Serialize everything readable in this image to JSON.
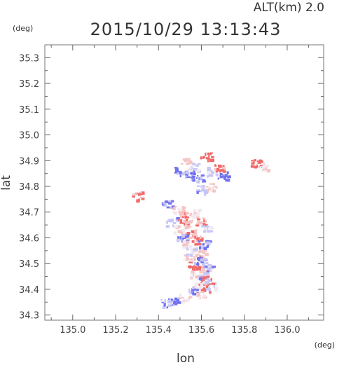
{
  "chart_data": {
    "type": "heatmap",
    "title": "2015/10/29 13:13:43",
    "altitude_label": "ALT(km) 2.0",
    "xlabel": "lon",
    "ylabel": "lat",
    "xunit": "(deg)",
    "yunit": "(deg)",
    "xlim": [
      134.87,
      136.17
    ],
    "ylim": [
      34.28,
      35.35
    ],
    "x_ticks": [
      {
        "value": 135.0,
        "label": "135.0"
      },
      {
        "value": 135.2,
        "label": "135.2"
      },
      {
        "value": 135.4,
        "label": "135.4"
      },
      {
        "value": 135.6,
        "label": "135.6"
      },
      {
        "value": 135.8,
        "label": "135.8"
      },
      {
        "value": 136.0,
        "label": "136.0"
      }
    ],
    "y_ticks": [
      {
        "value": 34.3,
        "label": "34.3"
      },
      {
        "value": 34.4,
        "label": "34.4"
      },
      {
        "value": 34.5,
        "label": "34.5"
      },
      {
        "value": 34.6,
        "label": "34.6"
      },
      {
        "value": 34.7,
        "label": "34.7"
      },
      {
        "value": 34.8,
        "label": "34.8"
      },
      {
        "value": 34.9,
        "label": "34.9"
      },
      {
        "value": 35.0,
        "label": "35.0"
      },
      {
        "value": 35.1,
        "label": "35.1"
      },
      {
        "value": 35.2,
        "label": "35.2"
      },
      {
        "value": 35.3,
        "label": "35.3"
      }
    ],
    "colors": {
      "strong_positive": "#f06a6a",
      "weak_positive": "#f7c4c4",
      "neutral": "#f1e9f1",
      "weak_negative": "#c8c8f6",
      "strong_negative": "#7272ee"
    },
    "regions": [
      {
        "lon": 135.53,
        "lat": 34.905,
        "value": 0.4
      },
      {
        "lon": 135.62,
        "lat": 34.92,
        "value": 1.0
      },
      {
        "lon": 135.56,
        "lat": 34.88,
        "value": -0.3
      },
      {
        "lon": 135.5,
        "lat": 34.86,
        "value": -0.8
      },
      {
        "lon": 135.54,
        "lat": 34.845,
        "value": -0.6
      },
      {
        "lon": 135.58,
        "lat": 34.835,
        "value": -0.7
      },
      {
        "lon": 135.65,
        "lat": 34.86,
        "value": -0.4
      },
      {
        "lon": 135.68,
        "lat": 34.875,
        "value": 0.8
      },
      {
        "lon": 135.7,
        "lat": 34.845,
        "value": -0.9
      },
      {
        "lon": 135.64,
        "lat": 34.8,
        "value": 0.3
      },
      {
        "lon": 135.6,
        "lat": 34.79,
        "value": -0.5
      },
      {
        "lon": 135.85,
        "lat": 34.89,
        "value": 0.9
      },
      {
        "lon": 135.88,
        "lat": 34.88,
        "value": 0.2
      },
      {
        "lon": 135.3,
        "lat": 34.765,
        "value": 0.8
      },
      {
        "lon": 135.44,
        "lat": 34.73,
        "value": -0.7
      },
      {
        "lon": 135.49,
        "lat": 34.71,
        "value": 0.3
      },
      {
        "lon": 135.52,
        "lat": 34.7,
        "value": 0.5
      },
      {
        "lon": 135.56,
        "lat": 34.7,
        "value": 0.2
      },
      {
        "lon": 135.46,
        "lat": 34.665,
        "value": -0.5
      },
      {
        "lon": 135.51,
        "lat": 34.67,
        "value": 0.9
      },
      {
        "lon": 135.54,
        "lat": 34.655,
        "value": 0.4
      },
      {
        "lon": 135.59,
        "lat": 34.665,
        "value": 0.7
      },
      {
        "lon": 135.62,
        "lat": 34.64,
        "value": -0.3
      },
      {
        "lon": 135.49,
        "lat": 34.635,
        "value": 0.3
      },
      {
        "lon": 135.55,
        "lat": 34.62,
        "value": 0.6
      },
      {
        "lon": 135.51,
        "lat": 34.6,
        "value": -0.6
      },
      {
        "lon": 135.58,
        "lat": 34.595,
        "value": 0.8
      },
      {
        "lon": 135.61,
        "lat": 34.58,
        "value": -0.8
      },
      {
        "lon": 135.53,
        "lat": 34.575,
        "value": 0.2
      },
      {
        "lon": 135.55,
        "lat": 34.55,
        "value": -0.4
      },
      {
        "lon": 135.59,
        "lat": 34.54,
        "value": 0.5
      },
      {
        "lon": 135.54,
        "lat": 34.52,
        "value": 0.3
      },
      {
        "lon": 135.59,
        "lat": 34.51,
        "value": -0.7
      },
      {
        "lon": 135.56,
        "lat": 34.495,
        "value": 0.9
      },
      {
        "lon": 135.61,
        "lat": 34.48,
        "value": 0.4
      },
      {
        "lon": 135.63,
        "lat": 34.49,
        "value": -0.5
      },
      {
        "lon": 135.57,
        "lat": 34.46,
        "value": 0.3
      },
      {
        "lon": 135.6,
        "lat": 34.45,
        "value": -0.6
      },
      {
        "lon": 135.62,
        "lat": 34.44,
        "value": 1.0
      },
      {
        "lon": 135.58,
        "lat": 34.415,
        "value": 0.2
      },
      {
        "lon": 135.61,
        "lat": 34.41,
        "value": 0.8
      },
      {
        "lon": 135.64,
        "lat": 34.42,
        "value": -0.3
      },
      {
        "lon": 135.56,
        "lat": 34.395,
        "value": -0.7
      },
      {
        "lon": 135.59,
        "lat": 34.38,
        "value": 0.4
      },
      {
        "lon": 135.52,
        "lat": 34.37,
        "value": 0.1
      },
      {
        "lon": 135.47,
        "lat": 34.355,
        "value": -0.8
      },
      {
        "lon": 135.43,
        "lat": 34.348,
        "value": -0.6
      }
    ]
  }
}
